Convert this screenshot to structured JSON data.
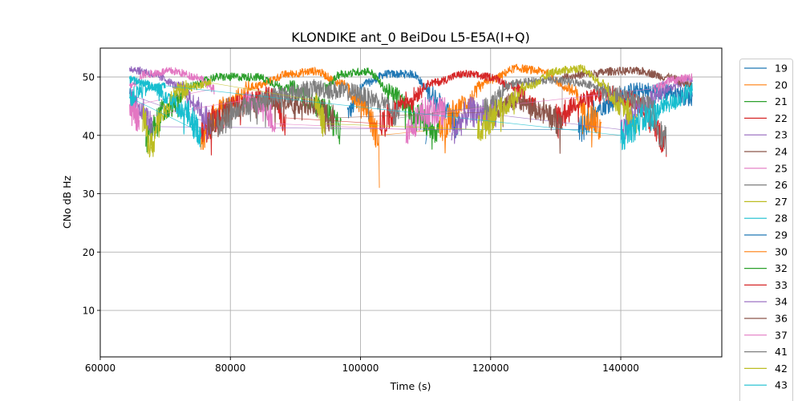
{
  "chart_data": {
    "type": "line",
    "title": "KLONDIKE ant_0 BeiDou L5-E5A(I+Q)",
    "xlabel": "Time (s)",
    "ylabel": "CNo dB Hz",
    "xlim": [
      60000,
      155530
    ],
    "ylim": [
      2.03,
      54.95
    ],
    "xticks": [
      60000,
      80000,
      100000,
      120000,
      140000
    ],
    "xtick_labels": [
      "60000",
      "80000",
      "100000",
      "120000",
      "140000"
    ],
    "yticks": [
      10,
      20,
      30,
      40,
      50
    ],
    "ytick_labels": [
      "10",
      "20",
      "30",
      "40",
      "50"
    ],
    "grid": true,
    "legend_placement": "outside-right",
    "series": [
      {
        "name": "19",
        "color": "#1f77b4",
        "passes": [
          [
            [
              98000,
              44
            ],
            [
              101000,
              49
            ],
            [
              104000,
              50.5
            ],
            [
              108000,
              50.5
            ],
            [
              111000,
              47
            ],
            [
              113500,
              44
            ],
            [
              115000,
              41
            ]
          ],
          [
            [
              133500,
              41
            ],
            [
              137000,
              45
            ],
            [
              142000,
              47.5
            ],
            [
              147000,
              47.5
            ],
            [
              151000,
              46.5
            ]
          ]
        ],
        "outliers": [
          [
            110000,
            38.5
          ]
        ]
      },
      {
        "name": "20",
        "color": "#ff7f0e",
        "passes": [
          [
            [
              75500,
              40
            ],
            [
              79000,
              45
            ],
            [
              84000,
              48.5
            ],
            [
              89000,
              50.5
            ],
            [
              93000,
              51
            ],
            [
              97000,
              49
            ],
            [
              100500,
              45
            ],
            [
              102800,
              40
            ]
          ],
          [
            [
              112000,
              41
            ],
            [
              116000,
              45.5
            ],
            [
              120000,
              49.5
            ],
            [
              124000,
              51.5
            ],
            [
              128000,
              51
            ],
            [
              132000,
              48
            ],
            [
              135500,
              43
            ],
            [
              137000,
              41
            ]
          ]
        ],
        "outliers": [
          [
            102900,
            31
          ]
        ]
      },
      {
        "name": "21",
        "color": "#2ca02c",
        "passes": [
          [
            [
              67000,
              39.5
            ],
            [
              70000,
              44
            ],
            [
              74000,
              48.5
            ],
            [
              78000,
              50
            ],
            [
              84000,
              50
            ],
            [
              89000,
              48
            ],
            [
              94000,
              45
            ],
            [
              97000,
              41
            ]
          ],
          [
            [
              94500,
              48
            ],
            [
              97000,
              50.5
            ],
            [
              101000,
              51
            ],
            [
              105000,
              47
            ],
            [
              109000,
              43
            ],
            [
              112000,
              41
            ]
          ]
        ],
        "outliers": []
      },
      {
        "name": "22",
        "color": "#d62728",
        "passes": [
          [
            [
              75500,
              40.5
            ],
            [
              78000,
              43
            ],
            [
              81000,
              45.5
            ],
            [
              86000,
              47
            ],
            [
              88500,
              43
            ]
          ],
          [
            [
              103000,
              42
            ],
            [
              107000,
              46
            ],
            [
              111000,
              49
            ],
            [
              116000,
              50.5
            ],
            [
              120000,
              50
            ],
            [
              124000,
              48
            ],
            [
              127000,
              45
            ]
          ],
          [
            [
              130000,
              43
            ],
            [
              134000,
              46
            ],
            [
              138000,
              47
            ],
            [
              142000,
              46
            ],
            [
              145000,
              42.5
            ],
            [
              147000,
              38
            ]
          ]
        ],
        "outliers": []
      },
      {
        "name": "23",
        "color": "#9467bd",
        "passes": [
          [
            [
              64500,
              51.5
            ],
            [
              66500,
              51
            ],
            [
              69000,
              50
            ],
            [
              72000,
              48.5
            ],
            [
              74500,
              45.5
            ],
            [
              77000,
              42
            ]
          ],
          [
            [
              64500,
              47
            ],
            [
              66500,
              44
            ],
            [
              68000,
              41.5
            ]
          ],
          [
            [
              114000,
              41
            ],
            [
              117000,
              44
            ],
            [
              121000,
              43.5
            ]
          ],
          [
            [
              140000,
              41
            ],
            [
              143000,
              45
            ],
            [
              147000,
              48
            ],
            [
              151000,
              49.5
            ]
          ]
        ],
        "outliers": []
      },
      {
        "name": "24",
        "color": "#8c564b",
        "passes": [
          [
            [
              76500,
              41
            ],
            [
              80000,
              44
            ],
            [
              84000,
              45.5
            ],
            [
              88000,
              46
            ],
            [
              92000,
              45
            ],
            [
              96000,
              43
            ]
          ],
          [
            [
              120000,
              44
            ],
            [
              124000,
              46
            ],
            [
              128000,
              44
            ],
            [
              131000,
              42
            ]
          ],
          [
            [
              131000,
              50
            ],
            [
              135000,
              50.5
            ],
            [
              139000,
              51
            ],
            [
              143000,
              51
            ],
            [
              147000,
              50
            ],
            [
              151000,
              48.5
            ]
          ]
        ],
        "outliers": []
      },
      {
        "name": "25",
        "color": "#e377c2",
        "passes": [
          [
            [
              64500,
              48.5
            ],
            [
              67000,
              50.5
            ],
            [
              71000,
              51
            ],
            [
              75000,
              50
            ],
            [
              77500,
              48
            ]
          ],
          [
            [
              64500,
              45
            ],
            [
              66000,
              43
            ]
          ],
          [
            [
              82000,
              46
            ],
            [
              85000,
              45
            ],
            [
              87000,
              42
            ]
          ],
          [
            [
              107000,
              41
            ],
            [
              110000,
              44
            ],
            [
              113000,
              44
            ]
          ],
          [
            [
              145000,
              48
            ],
            [
              148000,
              49.5
            ],
            [
              151000,
              50
            ]
          ]
        ],
        "outliers": []
      },
      {
        "name": "26",
        "color": "#7f7f7f",
        "passes": [
          [
            [
              78000,
              42
            ],
            [
              82000,
              45
            ],
            [
              88000,
              47
            ],
            [
              93000,
              48
            ],
            [
              98000,
              47.5
            ],
            [
              103000,
              46
            ],
            [
              106000,
              43
            ]
          ],
          [
            [
              119000,
              45
            ],
            [
              124000,
              49
            ],
            [
              129000,
              49.5
            ],
            [
              134000,
              49
            ],
            [
              139000,
              47
            ],
            [
              144000,
              45.5
            ],
            [
              147000,
              39
            ]
          ]
        ],
        "outliers": []
      },
      {
        "name": "27",
        "color": "#bcbd22",
        "passes": [
          [
            [
              66500,
              43
            ],
            [
              67800,
              38
            ],
            [
              69500,
              44
            ],
            [
              72000,
              47.5
            ],
            [
              75000,
              48.5
            ],
            [
              77000,
              49
            ]
          ],
          [
            [
              93000,
              46
            ],
            [
              94500,
              42
            ]
          ],
          [
            [
              118000,
              41
            ],
            [
              122000,
              45
            ],
            [
              126000,
              48.5
            ],
            [
              130000,
              51
            ],
            [
              134000,
              51.5
            ],
            [
              137000,
              49
            ],
            [
              140000,
              45
            ],
            [
              142500,
              42
            ]
          ]
        ],
        "outliers": [
          [
            68000,
            37
          ]
        ]
      },
      {
        "name": "28",
        "color": "#17becf",
        "passes": [
          [
            [
              64500,
              49.5
            ],
            [
              67000,
              49
            ],
            [
              70000,
              47
            ],
            [
              73000,
              44
            ],
            [
              75500,
              40.5
            ]
          ],
          [
            [
              64500,
              46.5
            ],
            [
              67000,
              48
            ],
            [
              70000,
              48.5
            ]
          ],
          [
            [
              140000,
              40
            ],
            [
              144000,
              43
            ],
            [
              147500,
              45.5
            ],
            [
              151000,
              47.5
            ]
          ]
        ],
        "outliers": []
      },
      {
        "name": "29",
        "color": "#1f77b4",
        "passes": [],
        "outliers": []
      },
      {
        "name": "30",
        "color": "#ff7f0e",
        "passes": [],
        "outliers": []
      },
      {
        "name": "32",
        "color": "#2ca02c",
        "passes": [],
        "outliers": []
      },
      {
        "name": "33",
        "color": "#d62728",
        "passes": [],
        "outliers": []
      },
      {
        "name": "34",
        "color": "#9467bd",
        "passes": [],
        "outliers": []
      },
      {
        "name": "36",
        "color": "#8c564b",
        "passes": [],
        "outliers": []
      },
      {
        "name": "37",
        "color": "#e377c2",
        "passes": [],
        "outliers": []
      },
      {
        "name": "41",
        "color": "#7f7f7f",
        "passes": [],
        "outliers": []
      },
      {
        "name": "42",
        "color": "#bcbd22",
        "passes": [],
        "outliers": []
      },
      {
        "name": "43",
        "color": "#17becf",
        "passes": [],
        "outliers": []
      }
    ]
  }
}
